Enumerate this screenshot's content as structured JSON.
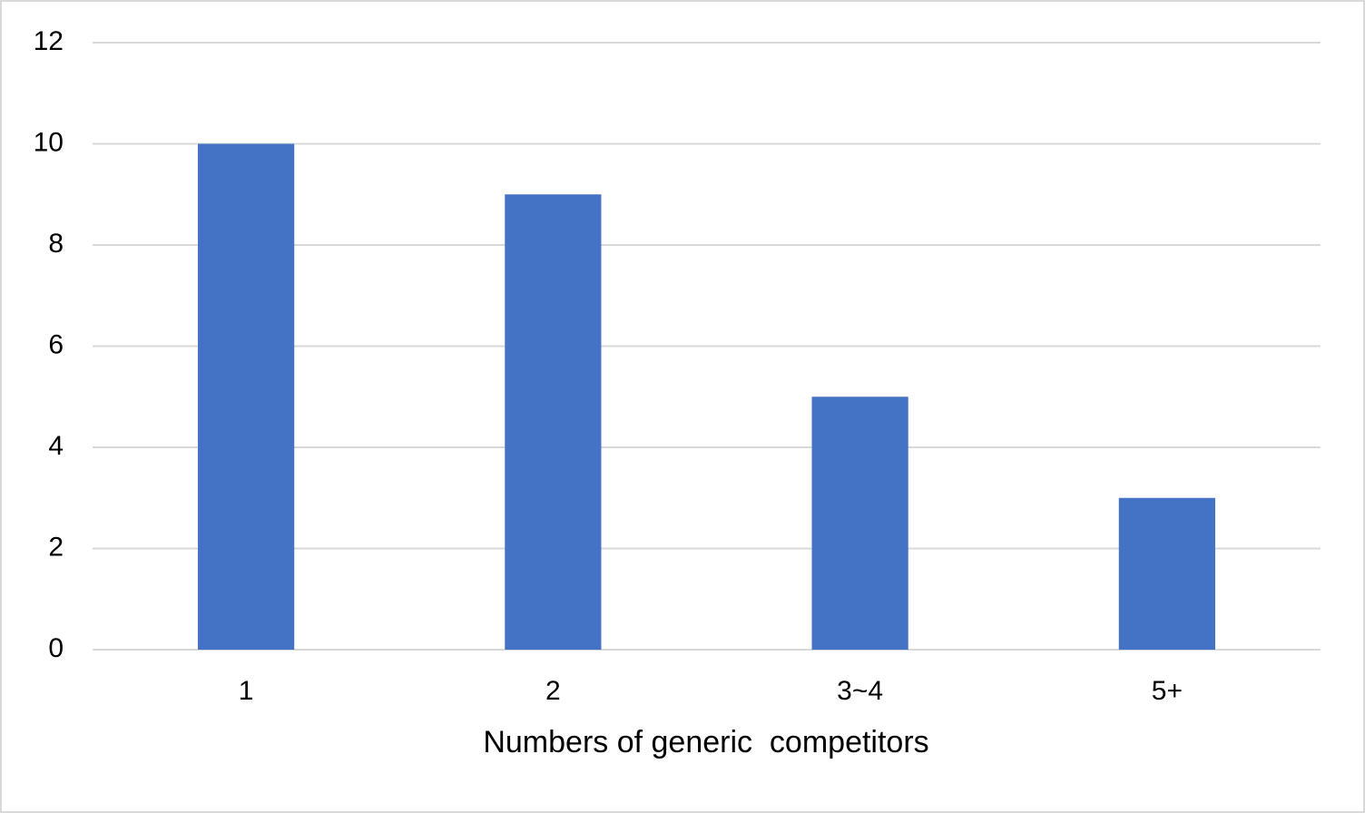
{
  "chart_data": {
    "type": "bar",
    "x_label": "Numbers of generic  competitors",
    "categories": [
      "1",
      "2",
      "3~4",
      "5+"
    ],
    "values": [
      10,
      9,
      5,
      3
    ],
    "color": "#4472c4",
    "ylim": [
      0,
      12
    ],
    "yticks": [
      0,
      2,
      4,
      6,
      8,
      10,
      12
    ],
    "grid": true
  }
}
